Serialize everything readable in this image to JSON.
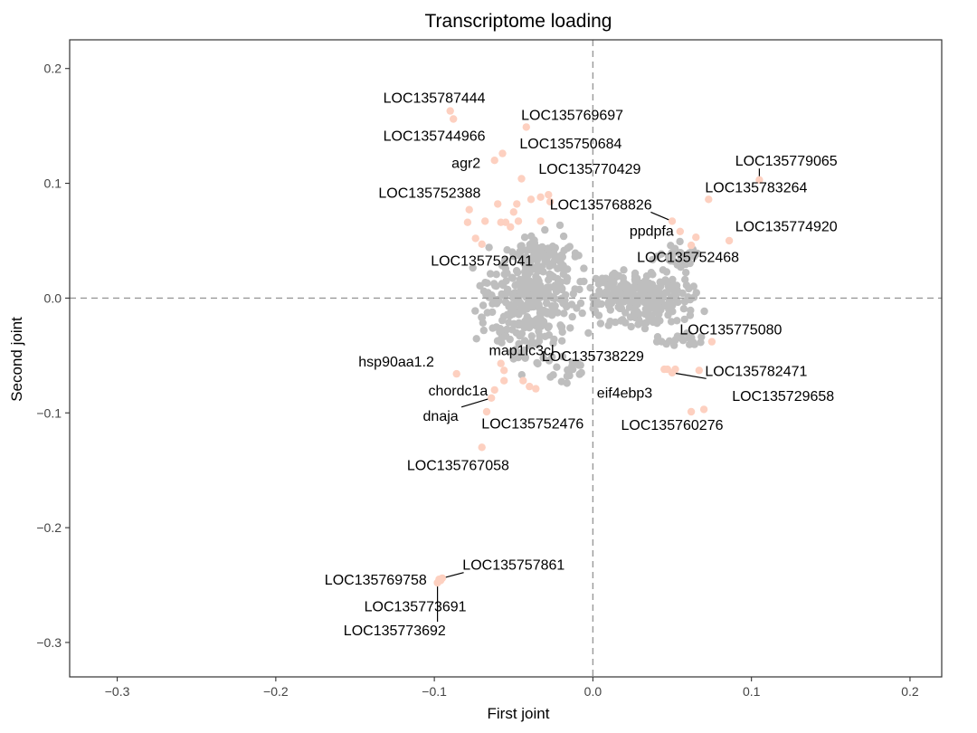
{
  "chart_data": {
    "type": "scatter",
    "title": "Transcriptome loading",
    "xlabel": "First joint",
    "ylabel": "Second joint",
    "xlim": [
      -0.33,
      0.22
    ],
    "ylim": [
      -0.33,
      0.225
    ],
    "x_ticks": [
      -0.3,
      -0.2,
      -0.1,
      0.0,
      0.1,
      0.2
    ],
    "y_ticks": [
      -0.3,
      -0.2,
      -0.1,
      0.0,
      0.1,
      0.2
    ],
    "x_tick_labels": [
      "−0.3",
      "−0.2",
      "−0.1",
      "0.0",
      "0.1",
      "0.2"
    ],
    "y_tick_labels": [
      "−0.3",
      "−0.2",
      "−0.1",
      "0.0",
      "0.1",
      "0.2"
    ],
    "grid": false,
    "reference_lines": {
      "x": 0,
      "y": 0,
      "style": "dashed"
    },
    "colors": {
      "background_points": "#bebebe",
      "highlight_points": "#fdd0c0",
      "reference_line": "#999999"
    },
    "background_clusters": [
      {
        "cx": -0.04,
        "cy": -0.005,
        "rx": 0.025,
        "ry": 0.038,
        "n": 320
      },
      {
        "cx": -0.03,
        "cy": 0.04,
        "rx": 0.015,
        "ry": 0.015,
        "n": 60
      },
      {
        "cx": -0.015,
        "cy": -0.06,
        "rx": 0.01,
        "ry": 0.015,
        "n": 20
      },
      {
        "cx": 0.03,
        "cy": 0.0,
        "rx": 0.028,
        "ry": 0.022,
        "n": 260
      },
      {
        "cx": 0.055,
        "cy": 0.035,
        "rx": 0.015,
        "ry": 0.01,
        "n": 35
      },
      {
        "cx": 0.055,
        "cy": -0.035,
        "rx": 0.012,
        "ry": 0.01,
        "n": 20
      }
    ],
    "highlighted_points": [
      {
        "label": "LOC135787444",
        "x": -0.09,
        "y": 0.163,
        "lx": -0.1,
        "ly": 0.175
      },
      {
        "label": "LOC135744966",
        "x": -0.088,
        "y": 0.156,
        "lx": -0.1,
        "ly": 0.142
      },
      {
        "label": "LOC135769697",
        "x": -0.042,
        "y": 0.149,
        "lx": -0.013,
        "ly": 0.16
      },
      {
        "label": "LOC135750684",
        "x": -0.057,
        "y": 0.126,
        "lx": -0.014,
        "ly": 0.135
      },
      {
        "label": "agr2",
        "x": -0.062,
        "y": 0.12,
        "lx": -0.08,
        "ly": 0.118
      },
      {
        "label": "LOC135770429",
        "x": -0.045,
        "y": 0.104,
        "lx": -0.002,
        "ly": 0.113
      },
      {
        "label": "LOC135752388",
        "x": -0.06,
        "y": 0.082,
        "lx": -0.103,
        "ly": 0.092
      },
      {
        "label": "LOC135768826",
        "x": 0.05,
        "y": 0.067,
        "lx": 0.005,
        "ly": 0.082,
        "leader": true
      },
      {
        "label": "LOC135779065",
        "x": 0.105,
        "y": 0.103,
        "lx": 0.122,
        "ly": 0.12,
        "leader": true
      },
      {
        "label": "LOC135783264",
        "x": 0.073,
        "y": 0.086,
        "lx": 0.103,
        "ly": 0.097
      },
      {
        "label": "LOC135774920",
        "x": 0.086,
        "y": 0.05,
        "lx": 0.122,
        "ly": 0.063
      },
      {
        "label": "ppdpfa",
        "x": 0.055,
        "y": 0.058,
        "lx": 0.037,
        "ly": 0.059
      },
      {
        "label": "LOC135752468",
        "x": 0.065,
        "y": 0.053,
        "lx": 0.06,
        "ly": 0.036
      },
      {
        "label": "LOC135752041",
        "x": -0.05,
        "y": 0.075,
        "lx": -0.07,
        "ly": 0.033
      },
      {
        "label": "LOC135775080",
        "x": 0.075,
        "y": -0.038,
        "lx": 0.087,
        "ly": -0.027
      },
      {
        "label": "LOC135738229",
        "x": 0.045,
        "y": -0.062,
        "lx": 0.0,
        "ly": -0.05
      },
      {
        "label": "map1lc3cl",
        "x": -0.058,
        "y": -0.057,
        "lx": -0.045,
        "ly": -0.045
      },
      {
        "label": "hsp90aa1.2",
        "x": -0.086,
        "y": -0.066,
        "lx": -0.124,
        "ly": -0.055
      },
      {
        "label": "LOC135782471",
        "x": 0.05,
        "y": -0.065,
        "lx": 0.103,
        "ly": -0.063,
        "leader": true
      },
      {
        "label": "chordc1a",
        "x": -0.062,
        "y": -0.08,
        "lx": -0.085,
        "ly": -0.08
      },
      {
        "label": "eif4ebp3",
        "x": 0.047,
        "y": -0.062,
        "lx": 0.02,
        "ly": -0.082
      },
      {
        "label": "LOC135729658",
        "x": 0.07,
        "y": -0.097,
        "lx": 0.12,
        "ly": -0.085
      },
      {
        "label": "dnaja",
        "x": -0.064,
        "y": -0.087,
        "lx": -0.096,
        "ly": -0.102,
        "leader": true
      },
      {
        "label": "LOC135752476",
        "x": -0.067,
        "y": -0.099,
        "lx": -0.038,
        "ly": -0.109
      },
      {
        "label": "LOC135760276",
        "x": 0.062,
        "y": -0.099,
        "lx": 0.05,
        "ly": -0.11
      },
      {
        "label": "LOC135767058",
        "x": -0.07,
        "y": -0.13,
        "lx": -0.085,
        "ly": -0.145
      },
      {
        "label": "LOC135757861",
        "x": -0.095,
        "y": -0.244,
        "lx": -0.05,
        "ly": -0.232,
        "leader": true
      },
      {
        "label": "LOC135769758",
        "x": -0.097,
        "y": -0.245,
        "lx": -0.137,
        "ly": -0.245
      },
      {
        "label": "LOC135773691",
        "x": -0.096,
        "y": -0.246,
        "lx": -0.112,
        "ly": -0.268
      },
      {
        "label": "LOC135773692",
        "x": -0.098,
        "y": -0.248,
        "lx": -0.125,
        "ly": -0.289,
        "leader": true
      }
    ],
    "unlabeled_highlight_points": [
      [
        -0.078,
        0.077
      ],
      [
        -0.079,
        0.066
      ],
      [
        -0.068,
        0.067
      ],
      [
        -0.058,
        0.066
      ],
      [
        -0.055,
        0.066
      ],
      [
        -0.052,
        0.062
      ],
      [
        -0.047,
        0.067
      ],
      [
        -0.033,
        0.067
      ],
      [
        -0.048,
        0.082
      ],
      [
        -0.039,
        0.086
      ],
      [
        -0.033,
        0.088
      ],
      [
        -0.028,
        0.09
      ],
      [
        -0.027,
        0.084
      ],
      [
        -0.074,
        0.052
      ],
      [
        -0.07,
        0.047
      ],
      [
        -0.056,
        -0.063
      ],
      [
        -0.044,
        -0.072
      ],
      [
        -0.04,
        -0.077
      ],
      [
        -0.036,
        -0.079
      ],
      [
        -0.056,
        -0.072
      ],
      [
        0.062,
        0.046
      ],
      [
        0.052,
        -0.062
      ],
      [
        0.067,
        -0.063
      ]
    ]
  }
}
